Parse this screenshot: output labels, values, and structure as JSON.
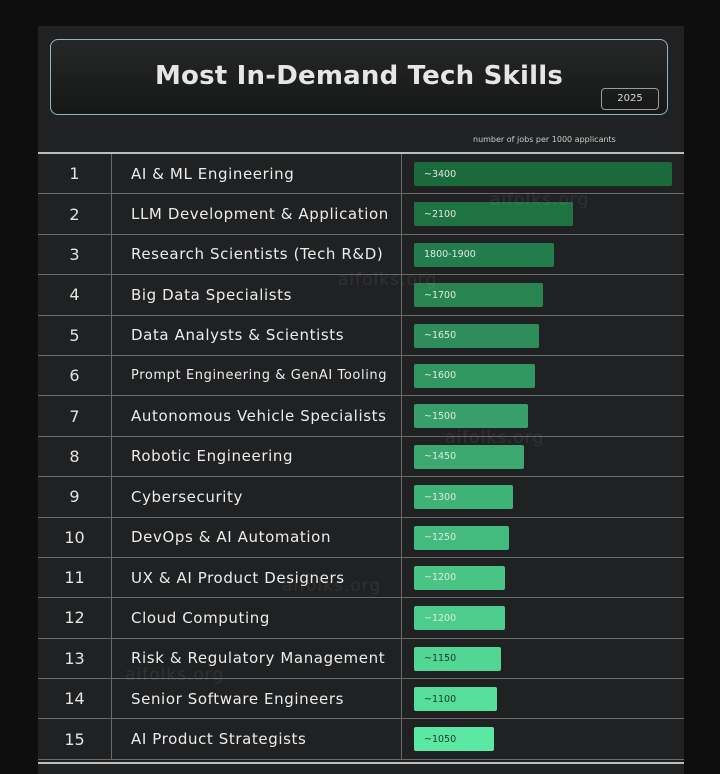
{
  "header": {
    "title": "Most In-Demand Tech Skills",
    "year": "2025",
    "axis_note": "number of jobs per 1000 applicants"
  },
  "watermark": "aifolks.org",
  "colors": {
    "bar_dark": "#1a6a3c",
    "bar_light": "#5be8a2"
  },
  "chart_data": {
    "type": "bar",
    "orientation": "horizontal",
    "title": "Most In-Demand Tech Skills",
    "subtitle": "2025",
    "xlabel": "number of jobs per 1000 applicants",
    "ylabel": "",
    "xlim": [
      0,
      3400
    ],
    "rows": [
      {
        "rank": "1",
        "skill": "AI & ML Engineering",
        "label": "~3400",
        "value": 3400
      },
      {
        "rank": "2",
        "skill": "LLM Development & Application",
        "label": "~2100",
        "value": 2100
      },
      {
        "rank": "3",
        "skill": "Research Scientists (Tech R&D)",
        "label": "1800-1900",
        "value": 1850
      },
      {
        "rank": "4",
        "skill": "Big Data Specialists",
        "label": "~1700",
        "value": 1700
      },
      {
        "rank": "5",
        "skill": "Data Analysts & Scientists",
        "label": "~1650",
        "value": 1650
      },
      {
        "rank": "6",
        "skill": "Prompt Engineering & GenAI Tooling",
        "label": "~1600",
        "value": 1600
      },
      {
        "rank": "7",
        "skill": "Autonomous Vehicle Specialists",
        "label": "~1500",
        "value": 1500
      },
      {
        "rank": "8",
        "skill": "Robotic Engineering",
        "label": "~1450",
        "value": 1450
      },
      {
        "rank": "9",
        "skill": "Cybersecurity",
        "label": "~1300",
        "value": 1300
      },
      {
        "rank": "10",
        "skill": "DevOps & AI Automation",
        "label": "~1250",
        "value": 1250
      },
      {
        "rank": "11",
        "skill": "UX & AI Product Designers",
        "label": "~1200",
        "value": 1200
      },
      {
        "rank": "12",
        "skill": "Cloud Computing",
        "label": "~1200",
        "value": 1200
      },
      {
        "rank": "13",
        "skill": "Risk & Regulatory Management",
        "label": "~1150",
        "value": 1150
      },
      {
        "rank": "14",
        "skill": "Senior Software Engineers",
        "label": "~1100",
        "value": 1100
      },
      {
        "rank": "15",
        "skill": "AI Product Strategists",
        "label": "~1050",
        "value": 1050
      }
    ]
  }
}
